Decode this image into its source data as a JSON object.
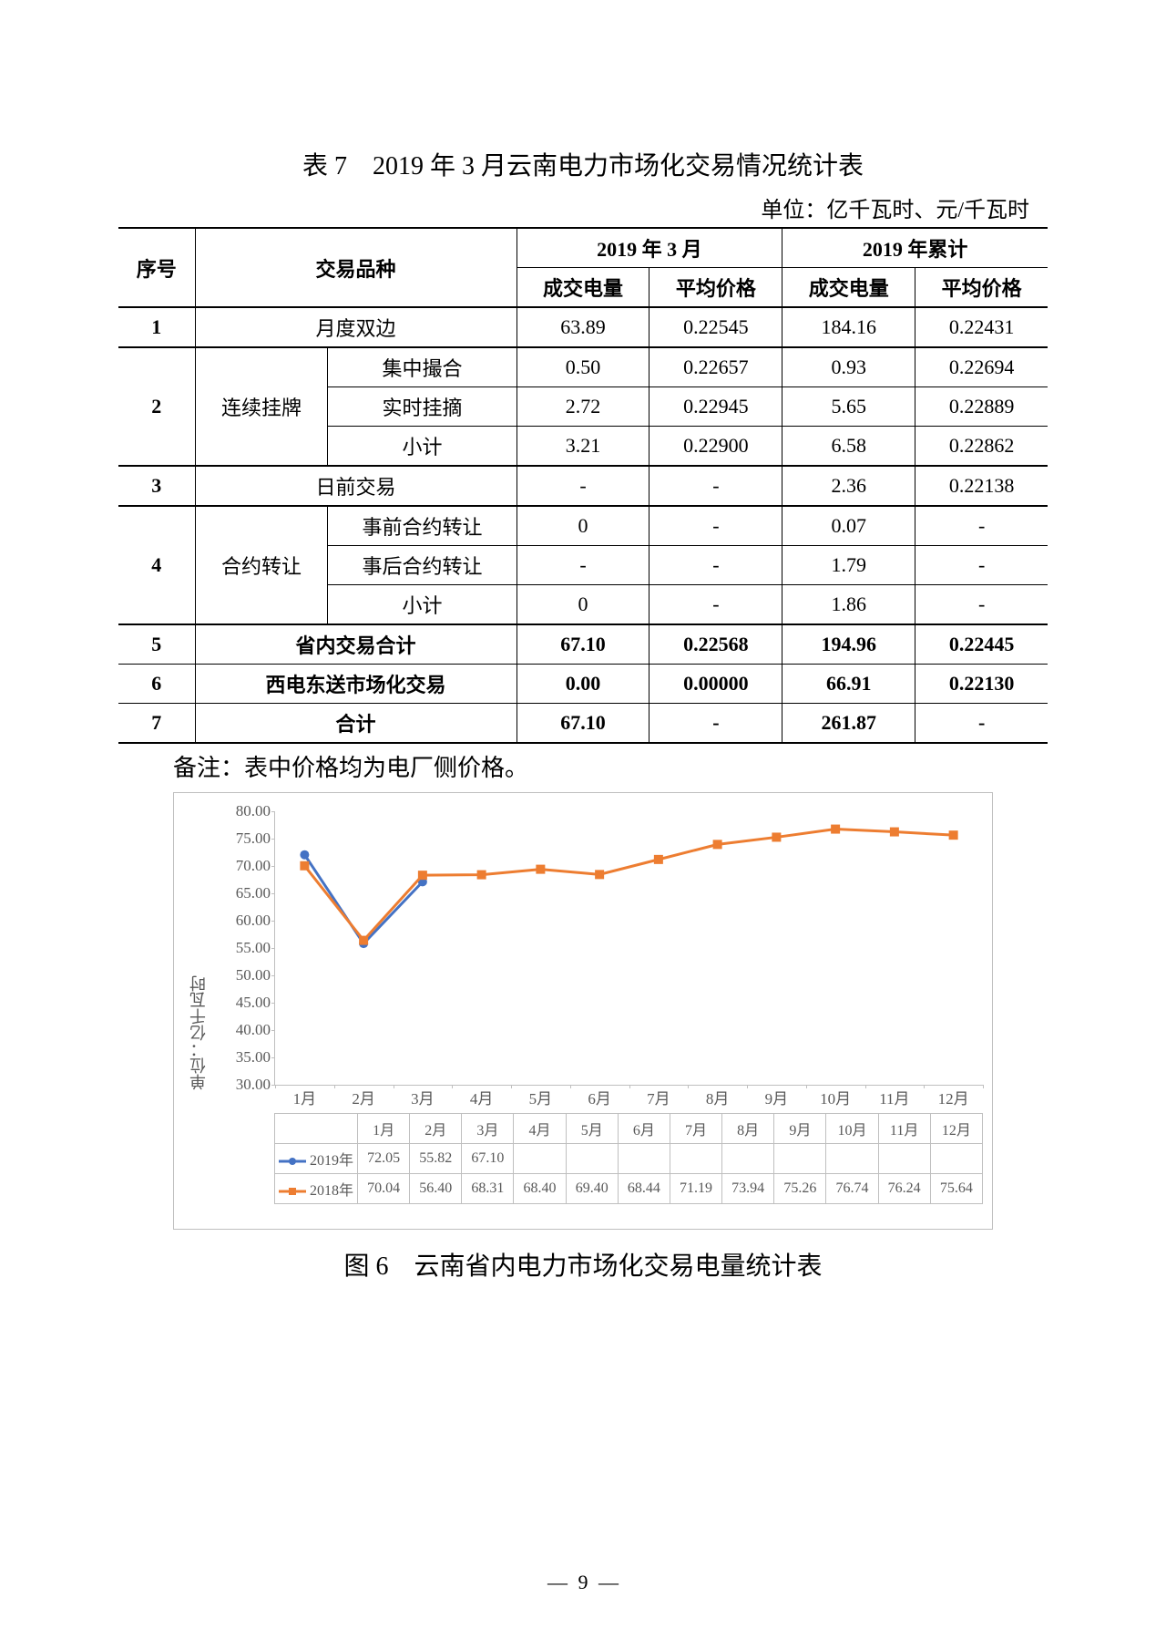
{
  "title": "表 7　2019 年 3 月云南电力市场化交易情况统计表",
  "unit_label": "单位：亿千瓦时、元/千瓦时",
  "table": {
    "header": {
      "seq": "序号",
      "type": "交易品种",
      "march": "2019 年 3 月",
      "ytd": "2019 年累计",
      "vol": "成交电量",
      "price": "平均价格"
    },
    "rows": [
      {
        "seq": "1",
        "type_span": "月度双边",
        "sub": "",
        "m_vol": "63.89",
        "m_price": "0.22545",
        "y_vol": "184.16",
        "y_price": "0.22431",
        "bold": true
      },
      {
        "seq": "2",
        "type": "连续挂牌",
        "sub": "集中撮合",
        "m_vol": "0.50",
        "m_price": "0.22657",
        "y_vol": "0.93",
        "y_price": "0.22694"
      },
      {
        "seq": "",
        "type": "",
        "sub": "实时挂摘",
        "m_vol": "2.72",
        "m_price": "0.22945",
        "y_vol": "5.65",
        "y_price": "0.22889"
      },
      {
        "seq": "",
        "type": "",
        "sub": "小计",
        "m_vol": "3.21",
        "m_price": "0.22900",
        "y_vol": "6.58",
        "y_price": "0.22862"
      },
      {
        "seq": "3",
        "type_span": "日前交易",
        "sub": "",
        "m_vol": "-",
        "m_price": "-",
        "y_vol": "2.36",
        "y_price": "0.22138",
        "bold": true
      },
      {
        "seq": "4",
        "type": "合约转让",
        "sub": "事前合约转让",
        "m_vol": "0",
        "m_price": "-",
        "y_vol": "0.07",
        "y_price": "-"
      },
      {
        "seq": "",
        "type": "",
        "sub": "事后合约转让",
        "m_vol": "-",
        "m_price": "-",
        "y_vol": "1.79",
        "y_price": "-"
      },
      {
        "seq": "",
        "type": "",
        "sub": "小计",
        "m_vol": "0",
        "m_price": "-",
        "y_vol": "1.86",
        "y_price": "-"
      },
      {
        "seq": "5",
        "type_span": "省内交易合计",
        "sub": "",
        "m_vol": "67.10",
        "m_price": "0.22568",
        "y_vol": "194.96",
        "y_price": "0.22445",
        "bold_all": true
      },
      {
        "seq": "6",
        "type_span": "西电东送市场化交易",
        "sub": "",
        "m_vol": "0.00",
        "m_price": "0.00000",
        "y_vol": "66.91",
        "y_price": "0.22130",
        "bold_all": true
      },
      {
        "seq": "7",
        "type_span": "合计",
        "sub": "",
        "m_vol": "67.10",
        "m_price": "-",
        "y_vol": "261.87",
        "y_price": "-",
        "bold_all": true
      }
    ]
  },
  "note": "备注：表中价格均为电厂侧价格。",
  "chart": {
    "yaxis_label": "单位：亿千瓦时",
    "ymin": 30,
    "ymax": 80,
    "ystep": 5,
    "categories": [
      "1月",
      "2月",
      "3月",
      "4月",
      "5月",
      "6月",
      "7月",
      "8月",
      "9月",
      "10月",
      "11月",
      "12月"
    ],
    "series": [
      {
        "name": "2019年",
        "color": "#4472c4",
        "marker": "circle",
        "values": [
          72.05,
          55.82,
          67.1,
          null,
          null,
          null,
          null,
          null,
          null,
          null,
          null,
          null
        ]
      },
      {
        "name": "2018年",
        "color": "#ed7d31",
        "marker": "square",
        "values": [
          70.04,
          56.4,
          68.31,
          68.4,
          69.4,
          68.44,
          71.19,
          73.94,
          75.26,
          76.74,
          76.24,
          75.64
        ]
      }
    ],
    "legend_labels": {
      "2019": "2019年",
      "2018": "2018年"
    },
    "data_row_2019": [
      "72.05",
      "55.82",
      "67.10",
      "",
      "",
      "",
      "",
      "",
      "",
      "",
      "",
      ""
    ],
    "data_row_2018": [
      "70.04",
      "56.40",
      "68.31",
      "68.40",
      "69.40",
      "68.44",
      "71.19",
      "73.94",
      "75.26",
      "76.74",
      "76.24",
      "75.64"
    ]
  },
  "caption": "图 6　云南省内电力市场化交易电量统计表",
  "page_number": " 9 "
}
